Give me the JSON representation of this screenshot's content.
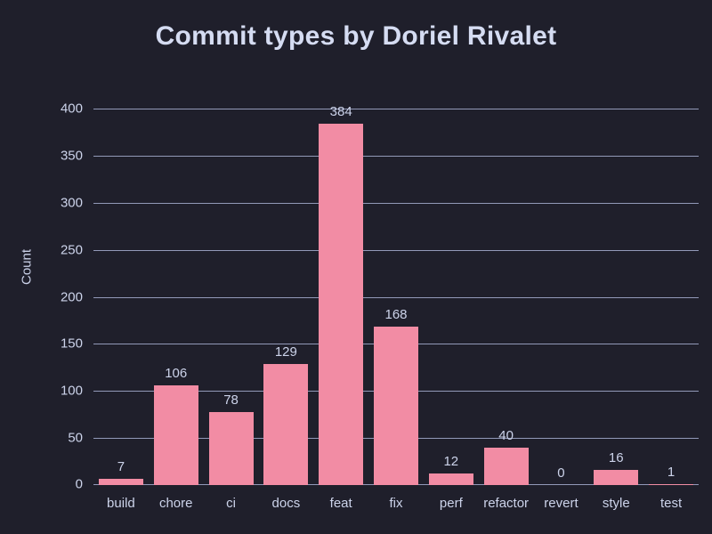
{
  "chart_data": {
    "type": "bar",
    "title": "Commit types by Doriel Rivalet",
    "categories": [
      "build",
      "chore",
      "ci",
      "docs",
      "feat",
      "fix",
      "perf",
      "refactor",
      "revert",
      "style",
      "test"
    ],
    "values": [
      7,
      106,
      78,
      129,
      384,
      168,
      12,
      40,
      0,
      16,
      1
    ],
    "xlabel": "",
    "ylabel": "Count",
    "ylim": [
      0,
      400
    ],
    "yticks": [
      0,
      50,
      100,
      150,
      200,
      250,
      300,
      350,
      400
    ],
    "grid": true,
    "legend": "none",
    "colors": {
      "background": "#1f1f2b",
      "bar": "#f28ca4",
      "gridline": "#9299b8",
      "text": "#ccd3ea",
      "title_text": "#d5dcf2"
    }
  }
}
